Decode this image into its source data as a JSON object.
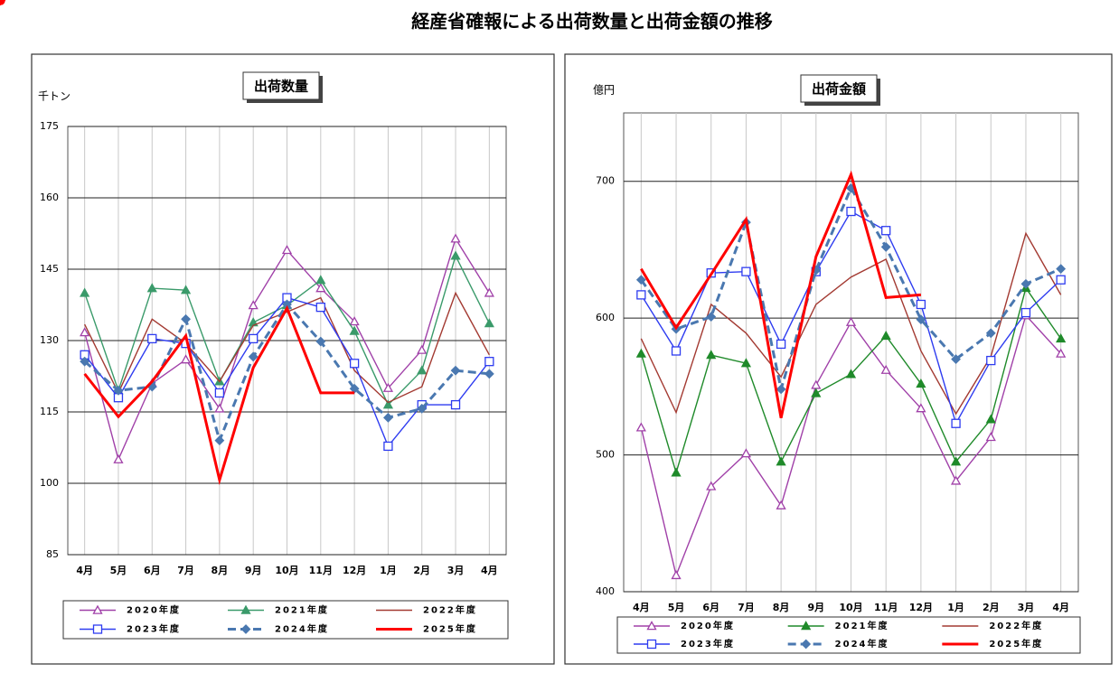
{
  "title": "経産省確報による出荷数量と出荷金額の推移",
  "chart_data": [
    {
      "type": "line",
      "title": "出荷数量",
      "ylabel": "千トン",
      "grid": true,
      "categories": [
        "4月",
        "5月",
        "6月",
        "7月",
        "8月",
        "9月",
        "10月",
        "11月",
        "12月",
        "1月",
        "2月",
        "3月",
        "4月"
      ],
      "ylim": [
        85,
        175
      ],
      "yticks": [
        85,
        100,
        115,
        130,
        145,
        160,
        175
      ],
      "series": [
        {
          "name": "2020年度",
          "color": "#a040a8",
          "marker": "triangle-open",
          "dash": "solid",
          "values": [
            131.7,
            105,
            121,
            126,
            115.7,
            137.4,
            149,
            141,
            134,
            120,
            128,
            151.4,
            140
          ]
        },
        {
          "name": "2021年度",
          "color": "#3a9a6a",
          "marker": "triangle",
          "dash": "solid",
          "values": [
            140,
            119.5,
            141,
            140.6,
            121.4,
            133.8,
            137.4,
            142.7,
            132,
            116.5,
            123.7,
            147.8,
            133.6
          ]
        },
        {
          "name": "2022年度",
          "color": "#a33a32",
          "marker": "circle-open",
          "dash": "solid",
          "values": [
            133.4,
            119,
            134.5,
            129.4,
            121.4,
            133.2,
            136,
            139,
            123.7,
            117,
            120.3,
            140,
            127
          ]
        },
        {
          "name": "2023年度",
          "color": "#2e3cf0",
          "marker": "square-open",
          "dash": "solid",
          "values": [
            127,
            118,
            130.4,
            129.4,
            119,
            130.4,
            139,
            137,
            125.2,
            107.8,
            116.5,
            116.5,
            125.6
          ]
        },
        {
          "name": "2024年度",
          "color": "#4a78b0",
          "marker": "diamond",
          "dash": "dashed",
          "values": [
            125.6,
            119.5,
            120.3,
            134.5,
            109,
            126.6,
            137.6,
            129.8,
            119.9,
            113.8,
            115.7,
            123.7,
            123
          ]
        },
        {
          "name": "2025年度",
          "color": "#ff0000",
          "marker": "circle",
          "dash": "thick",
          "values": [
            123,
            114,
            121.4,
            131,
            100.7,
            124.3,
            136.8,
            119,
            119,
            null,
            null,
            null,
            null
          ]
        }
      ]
    },
    {
      "type": "line",
      "title": "出荷金額",
      "ylabel": "億円",
      "grid": true,
      "categories": [
        "4月",
        "5月",
        "6月",
        "7月",
        "8月",
        "9月",
        "10月",
        "11月",
        "12月",
        "1月",
        "2月",
        "3月",
        "4月"
      ],
      "ylim": [
        400,
        750
      ],
      "yticks": [
        400,
        500,
        600,
        700
      ],
      "series": [
        {
          "name": "2020年度",
          "color": "#a040a8",
          "marker": "triangle-open",
          "dash": "solid",
          "values": [
            520,
            412,
            477,
            501,
            463,
            551,
            597,
            562,
            534,
            481,
            513,
            602,
            574
          ]
        },
        {
          "name": "2021年度",
          "color": "#1f8a2a",
          "marker": "triangle",
          "dash": "solid",
          "values": [
            574,
            487,
            573,
            567,
            495,
            545,
            559,
            587,
            552,
            495,
            526,
            622,
            585
          ]
        },
        {
          "name": "2022年度",
          "color": "#a33a32",
          "marker": "circle-open",
          "dash": "solid",
          "values": [
            585,
            531,
            610,
            589,
            557,
            610,
            630,
            643,
            576,
            530,
            572,
            662,
            617
          ]
        },
        {
          "name": "2023年度",
          "color": "#2e3cf0",
          "marker": "square-open",
          "dash": "solid",
          "values": [
            617,
            576,
            633,
            634,
            581,
            634,
            678,
            664,
            610,
            523,
            569,
            604,
            628
          ]
        },
        {
          "name": "2024年度",
          "color": "#4a78b0",
          "marker": "diamond",
          "dash": "dashed",
          "values": [
            628,
            592,
            601,
            670,
            548,
            635,
            695,
            652,
            599,
            570,
            589,
            625,
            636
          ]
        },
        {
          "name": "2025年度",
          "color": "#ff0000",
          "marker": "circle",
          "dash": "thick",
          "values": [
            636,
            593,
            632,
            672,
            527,
            645,
            705,
            615,
            617,
            null,
            null,
            null,
            null
          ]
        }
      ]
    }
  ]
}
